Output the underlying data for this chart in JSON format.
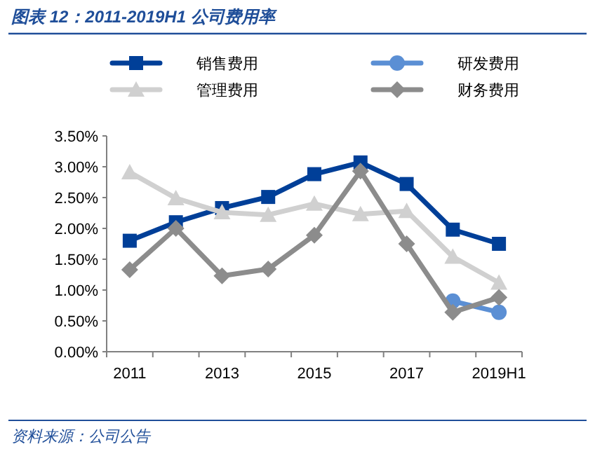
{
  "chart_data": {
    "type": "line",
    "title": "图表 12：2011-2019H1 公司费用率",
    "categories": [
      "2011",
      null,
      "2013",
      null,
      "2015",
      null,
      "2017",
      null,
      "2019H1"
    ],
    "series": [
      {
        "name": "销售费用",
        "color": "#003f98",
        "marker": "square",
        "values": [
          1.8,
          2.1,
          2.33,
          2.51,
          2.88,
          3.07,
          2.72,
          1.98,
          1.75
        ]
      },
      {
        "name": "研发费用",
        "color": "#5b8fd4",
        "marker": "circle",
        "values": [
          null,
          null,
          null,
          null,
          null,
          null,
          null,
          0.82,
          0.64
        ]
      },
      {
        "name": "管理费用",
        "color": "#d0d0d0",
        "marker": "triangle",
        "values": [
          2.91,
          2.49,
          2.26,
          2.22,
          2.4,
          2.23,
          2.28,
          1.54,
          1.12
        ]
      },
      {
        "name": "财务费用",
        "color": "#8c8c8c",
        "marker": "diamond",
        "values": [
          1.33,
          2.0,
          1.23,
          1.34,
          1.89,
          2.93,
          1.75,
          0.64,
          0.88
        ]
      }
    ],
    "ylim": [
      0,
      3.5
    ],
    "yticks": [
      {
        "value": 0,
        "label": "0.00%"
      },
      {
        "value": 0.5,
        "label": "0.50%"
      },
      {
        "value": 1,
        "label": "1.00%"
      },
      {
        "value": 1.5,
        "label": "1.50%"
      },
      {
        "value": 2,
        "label": "2.00%"
      },
      {
        "value": 2.5,
        "label": "2.50%"
      },
      {
        "value": 3,
        "label": "3.00%"
      },
      {
        "value": 3.5,
        "label": "3.50%"
      }
    ],
    "grid": false,
    "legend": "top",
    "annotations": [
      "资料来源：公司公告"
    ]
  }
}
